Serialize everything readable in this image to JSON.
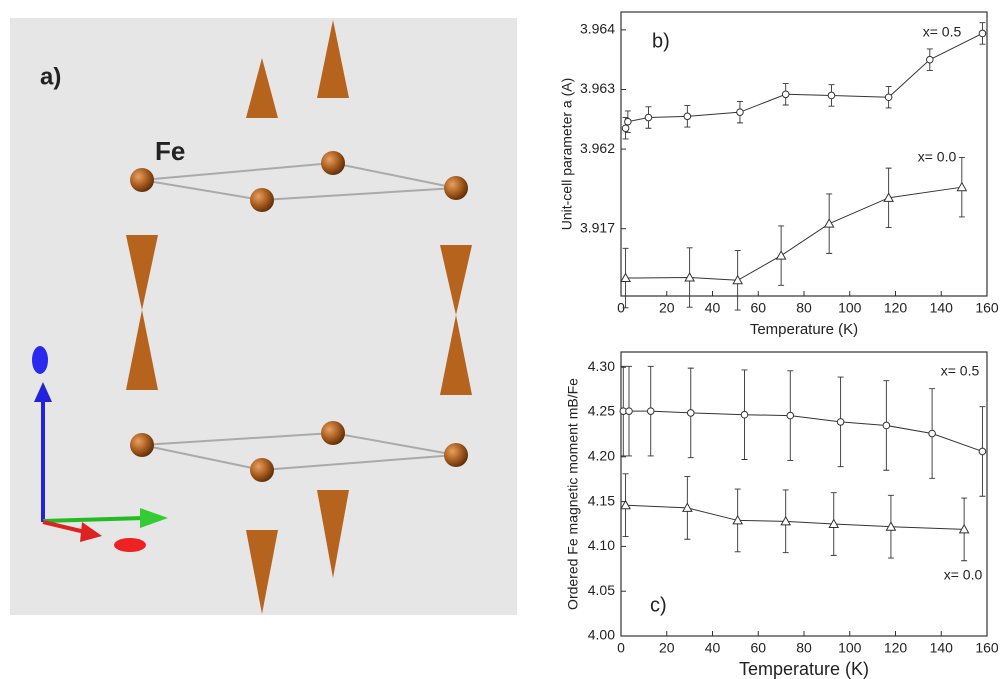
{
  "panel_a": {
    "label": "a)",
    "atom_label": "Fe"
  },
  "chart_data": [
    {
      "type": "line",
      "label": "b)",
      "xlabel": "Temperature (K)",
      "ylabel": "Unit-cell parameter a (A)",
      "xlim": [
        0,
        160
      ],
      "xticks": [
        0,
        20,
        40,
        60,
        80,
        100,
        120,
        140,
        160
      ],
      "ylim": [
        3.9617,
        3.9643
      ],
      "yticks": [
        3.962,
        3.963,
        3.964
      ],
      "y2lim": [
        3.9158,
        3.9181
      ],
      "y2ticks": [
        3.917
      ],
      "series": [
        {
          "name": "x= 0.5",
          "marker": "circle",
          "color": "#333333",
          "x": [
            2,
            3,
            12,
            29,
            52,
            72,
            92,
            117,
            135,
            158
          ],
          "values": [
            3.96235,
            3.96246,
            3.96253,
            3.96255,
            3.96262,
            3.96292,
            3.9629,
            3.96287,
            3.9635,
            3.96394
          ],
          "errors": [
            0.00018,
            0.00018,
            0.00018,
            0.00018,
            0.00018,
            0.00018,
            0.00018,
            0.00018,
            0.00018,
            0.00018
          ]
        },
        {
          "name": "x= 0.0",
          "marker": "triangle",
          "color": "#333333",
          "axis": "y2",
          "x": [
            2,
            30,
            51,
            70,
            91,
            117,
            149
          ],
          "values": [
            3.91612,
            3.91613,
            3.91608,
            3.91652,
            3.91709,
            3.91755,
            3.91774
          ],
          "errors": [
            0.00053,
            0.00053,
            0.00053,
            0.00053,
            0.00053,
            0.00053,
            0.00053
          ]
        }
      ]
    },
    {
      "type": "line",
      "label": "c)",
      "xlabel": "Temperature (K)",
      "ylabel": "Ordered Fe magnetic moment mB/Fe",
      "xlim": [
        0,
        160
      ],
      "xticks": [
        0,
        20,
        40,
        60,
        80,
        100,
        120,
        140,
        160
      ],
      "ylim": [
        4.0,
        4.317
      ],
      "yticks": [
        {
          "value": 4.0,
          "label": "4.00"
        },
        {
          "value": 4.05,
          "label": "4.05"
        },
        {
          "value": 4.1,
          "label": "4.10"
        },
        {
          "value": 4.15,
          "label": "4.15"
        },
        {
          "value": 4.2,
          "label": "4.20"
        },
        {
          "value": 4.25,
          "label": "4.25"
        },
        {
          "value": 4.3,
          "label": "4.30"
        }
      ],
      "series": [
        {
          "name": "x= 0.5",
          "marker": "circle",
          "color": "#333333",
          "x": [
            1,
            3.5,
            13,
            30.5,
            54,
            74,
            96,
            116,
            136,
            158
          ],
          "values": [
            4.251,
            4.251,
            4.251,
            4.249,
            4.247,
            4.246,
            4.239,
            4.235,
            4.226,
            4.206
          ],
          "errors": [
            0.05,
            0.05,
            0.05,
            0.05,
            0.05,
            0.05,
            0.05,
            0.05,
            0.05,
            0.05
          ]
        },
        {
          "name": "x= 0.0",
          "marker": "triangle",
          "color": "#333333",
          "x": [
            2,
            29,
            51,
            72,
            93,
            118,
            150
          ],
          "values": [
            4.146,
            4.143,
            4.129,
            4.128,
            4.125,
            4.122,
            4.119
          ],
          "errors": [
            0.035,
            0.035,
            0.035,
            0.035,
            0.035,
            0.035,
            0.035
          ]
        }
      ]
    }
  ]
}
